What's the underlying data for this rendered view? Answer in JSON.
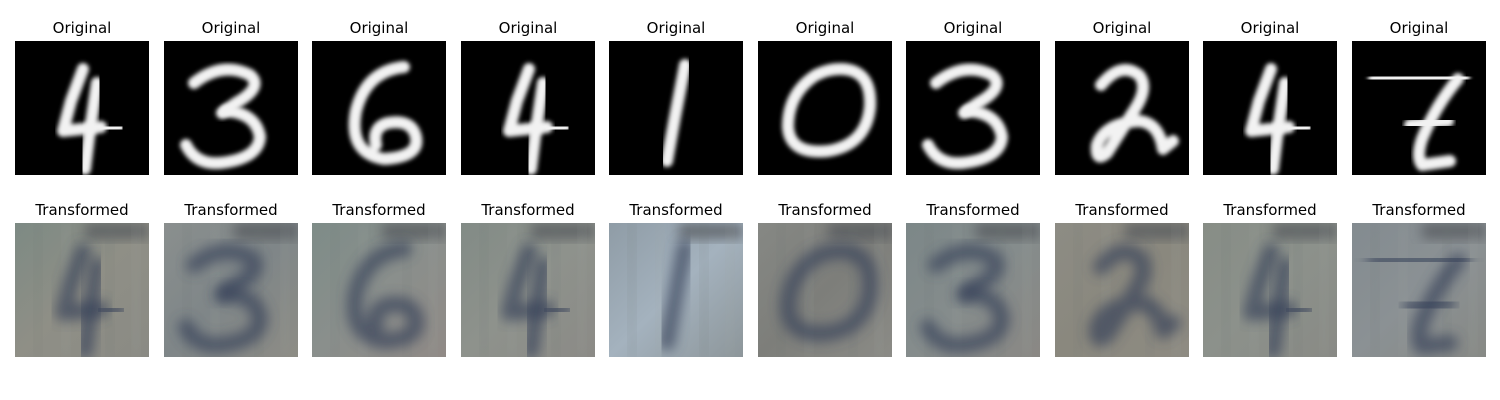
{
  "figure": {
    "rows": [
      {
        "row_name": "original-row",
        "title": "Original",
        "panels": [
          {
            "digit": "4",
            "image_kind": "grayscale-digit"
          },
          {
            "digit": "3",
            "image_kind": "grayscale-digit"
          },
          {
            "digit": "6",
            "image_kind": "grayscale-digit"
          },
          {
            "digit": "4",
            "image_kind": "grayscale-digit"
          },
          {
            "digit": "1",
            "image_kind": "grayscale-digit"
          },
          {
            "digit": "0",
            "image_kind": "grayscale-digit"
          },
          {
            "digit": "3",
            "image_kind": "grayscale-digit"
          },
          {
            "digit": "2",
            "image_kind": "grayscale-digit"
          },
          {
            "digit": "4",
            "image_kind": "grayscale-digit"
          },
          {
            "digit": "7",
            "image_kind": "grayscale-digit"
          }
        ]
      },
      {
        "row_name": "transformed-row",
        "title": "Transformed",
        "panels": [
          {
            "digit": "4",
            "image_kind": "color-reconstruction"
          },
          {
            "digit": "3",
            "image_kind": "color-reconstruction"
          },
          {
            "digit": "6",
            "image_kind": "color-reconstruction"
          },
          {
            "digit": "4",
            "image_kind": "color-reconstruction"
          },
          {
            "digit": "1",
            "image_kind": "color-reconstruction"
          },
          {
            "digit": "0",
            "image_kind": "color-reconstruction"
          },
          {
            "digit": "3",
            "image_kind": "color-reconstruction"
          },
          {
            "digit": "2",
            "image_kind": "color-reconstruction"
          },
          {
            "digit": "4",
            "image_kind": "color-reconstruction"
          },
          {
            "digit": "7",
            "image_kind": "color-reconstruction"
          }
        ]
      }
    ]
  },
  "colors": {
    "original_background": "#000000",
    "original_stroke": "#f2f2f2",
    "transformed_background": "#8a9089",
    "transformed_top_band": "#53565c",
    "transformed_stroke": "#39435a"
  }
}
